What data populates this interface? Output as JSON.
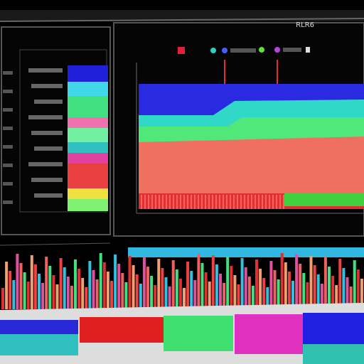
{
  "header": {
    "title": "RLR6"
  }
}
